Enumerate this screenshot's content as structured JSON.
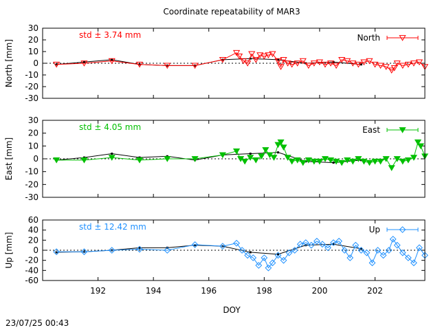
{
  "chart_data": {
    "type": "scatter",
    "title": "Coordinate repeatability of MAR3",
    "xlabel": "DOY",
    "xlim": [
      190.0,
      203.8
    ],
    "xticks": [
      192,
      194,
      196,
      198,
      200,
      202
    ],
    "timestamp": "23/07/25 00:43",
    "panels": [
      {
        "name": "north",
        "ylabel": "North [mm]",
        "ylim": [
          -30,
          30
        ],
        "yticks": [
          -30,
          -20,
          -10,
          0,
          10,
          20,
          30
        ],
        "std_label": "std ± 3.74 mm",
        "legend": "North",
        "color": "#ff0000",
        "marker": "triangle-down-open",
        "daily_x": [
          190.5,
          191.5,
          192.5,
          193.5,
          194.5,
          195.5,
          196.5,
          197.5,
          198.5,
          199.5,
          200.5,
          201.5
        ],
        "daily_y": [
          -1,
          1,
          3,
          -1,
          -2,
          -2,
          3,
          4,
          3,
          0,
          1,
          -1
        ],
        "series_x": [
          190.5,
          191.5,
          192.5,
          193.5,
          194.5,
          195.5,
          196.5,
          197.0,
          197.1,
          197.25,
          197.4,
          197.55,
          197.7,
          197.85,
          198.0,
          198.15,
          198.3,
          198.5,
          198.6,
          198.7,
          198.85,
          199.0,
          199.2,
          199.4,
          199.6,
          199.8,
          200.0,
          200.2,
          200.4,
          200.6,
          200.8,
          201.0,
          201.2,
          201.4,
          201.6,
          201.8,
          202.0,
          202.2,
          202.4,
          202.6,
          202.7,
          202.8,
          203.0,
          203.2,
          203.4,
          203.6,
          203.8
        ],
        "series_y": [
          -1,
          0,
          2,
          -1,
          -2,
          -2,
          3,
          9,
          6,
          2,
          0,
          8,
          3,
          7,
          6,
          7,
          8,
          2,
          -3,
          3,
          0,
          -1,
          0,
          2,
          -2,
          0,
          1,
          -1,
          0,
          -2,
          3,
          2,
          0,
          -1,
          1,
          2,
          -1,
          -2,
          -3,
          -6,
          -4,
          0,
          -2,
          -1,
          0,
          1,
          -3
        ]
      },
      {
        "name": "east",
        "ylabel": "East [mm]",
        "ylim": [
          -30,
          30
        ],
        "yticks": [
          -30,
          -20,
          -10,
          0,
          10,
          20,
          30
        ],
        "std_label": "std ± 4.05 mm",
        "legend": "East",
        "color": "#00c000",
        "marker": "triangle-down-filled",
        "daily_x": [
          190.5,
          191.5,
          192.5,
          193.5,
          194.5,
          195.5,
          196.5,
          197.5,
          198.5,
          199.5,
          200.5,
          201.5
        ],
        "daily_y": [
          -1,
          1,
          4,
          1,
          2,
          -1,
          3,
          4,
          5,
          -2,
          -3,
          -1
        ],
        "series_x": [
          190.5,
          191.5,
          192.5,
          193.5,
          194.5,
          195.5,
          196.5,
          197.0,
          197.15,
          197.3,
          197.5,
          197.7,
          197.9,
          198.05,
          198.2,
          198.35,
          198.5,
          198.6,
          198.7,
          198.85,
          199.0,
          199.2,
          199.4,
          199.6,
          199.8,
          200.0,
          200.2,
          200.4,
          200.6,
          200.8,
          201.0,
          201.2,
          201.4,
          201.6,
          201.8,
          202.0,
          202.2,
          202.4,
          202.6,
          202.8,
          203.0,
          203.2,
          203.4,
          203.55,
          203.65,
          203.8
        ],
        "series_y": [
          -1,
          -1,
          1,
          -1,
          0,
          0,
          3,
          6,
          0,
          -2,
          1,
          -1,
          2,
          7,
          3,
          1,
          11,
          13,
          9,
          1,
          -2,
          -1,
          -3,
          -1,
          -2,
          -2,
          0,
          -1,
          -2,
          -3,
          -1,
          -2,
          0,
          -2,
          -3,
          -2,
          -2,
          0,
          -7,
          0,
          -2,
          -1,
          1,
          13,
          10,
          2
        ]
      },
      {
        "name": "up",
        "ylabel": "Up [mm]",
        "ylim": [
          -60,
          60
        ],
        "yticks": [
          -60,
          -40,
          -20,
          0,
          20,
          40,
          60
        ],
        "std_label": "std ± 12.42 mm",
        "legend": "Up",
        "color": "#1e90ff",
        "marker": "diamond-open",
        "daily_x": [
          190.5,
          191.5,
          192.5,
          193.5,
          194.5,
          195.5,
          196.5,
          197.5,
          198.5,
          199.5,
          200.5,
          201.5
        ],
        "daily_y": [
          -4,
          -3,
          0,
          5,
          5,
          10,
          8,
          -4,
          -8,
          10,
          12,
          3
        ],
        "series_x": [
          190.5,
          191.5,
          192.5,
          193.5,
          194.5,
          195.5,
          196.5,
          197.0,
          197.2,
          197.4,
          197.6,
          197.8,
          198.0,
          198.15,
          198.3,
          198.5,
          198.7,
          198.9,
          199.1,
          199.3,
          199.5,
          199.7,
          199.9,
          200.1,
          200.3,
          200.5,
          200.7,
          200.9,
          201.1,
          201.3,
          201.5,
          201.7,
          201.9,
          202.1,
          202.3,
          202.5,
          202.65,
          202.8,
          203.0,
          203.2,
          203.4,
          203.6,
          203.8
        ],
        "series_y": [
          -3,
          -3,
          0,
          2,
          0,
          11,
          8,
          14,
          0,
          -10,
          -15,
          -30,
          -15,
          -35,
          -25,
          -10,
          -20,
          -5,
          0,
          12,
          15,
          10,
          18,
          12,
          5,
          15,
          18,
          0,
          -15,
          10,
          0,
          -5,
          -25,
          0,
          -10,
          0,
          22,
          10,
          -5,
          -15,
          -25,
          5,
          -10
        ]
      }
    ]
  }
}
